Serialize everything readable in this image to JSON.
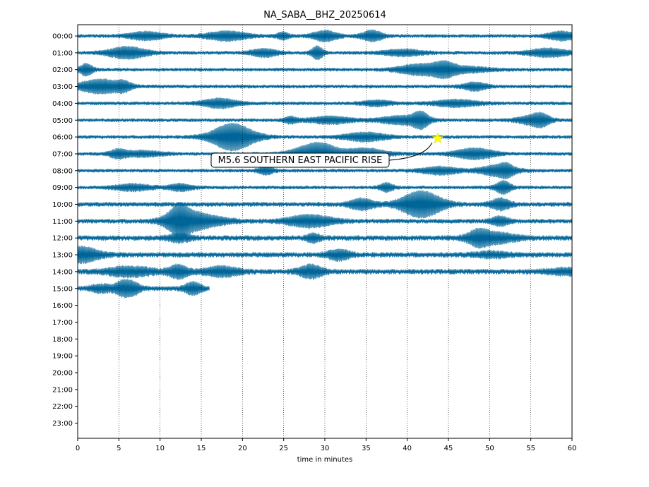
{
  "chart_data": {
    "type": "line",
    "title": "NA_SABA__BHZ_20250614",
    "xlabel": "time in minutes",
    "xlim": [
      0,
      60
    ],
    "x_ticks": [
      "0",
      "5",
      "10",
      "15",
      "20",
      "25",
      "30",
      "35",
      "40",
      "45",
      "50",
      "55",
      "60"
    ],
    "row_labels": [
      "00:00",
      "01:00",
      "02:00",
      "03:00",
      "04:00",
      "05:00",
      "06:00",
      "07:00",
      "08:00",
      "09:00",
      "10:00",
      "11:00",
      "12:00",
      "13:00",
      "14:00",
      "15:00",
      "16:00",
      "17:00",
      "18:00",
      "19:00",
      "20:00",
      "21:00",
      "22:00",
      "23:00"
    ],
    "trace_color": "#006699",
    "grid": "vertical dotted",
    "recorded_rows": 16,
    "last_row_end_minute": 16,
    "event": {
      "label": "M5.6 SOUTHERN EAST PACIFIC RISE",
      "row": "06:00",
      "minute": 43.7,
      "marker_color": "#ffff00"
    }
  }
}
